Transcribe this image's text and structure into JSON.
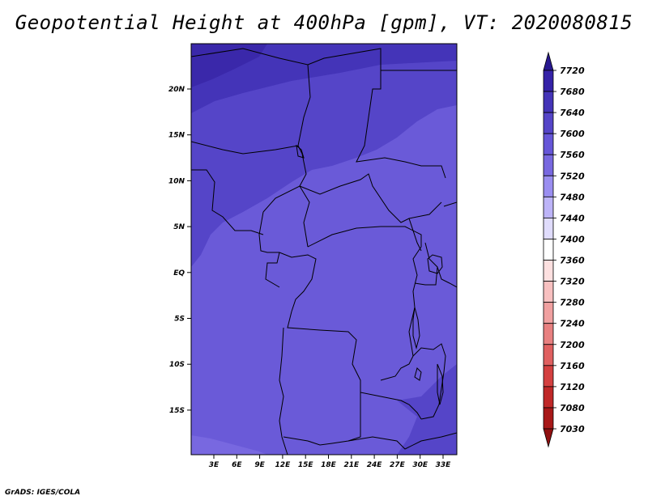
{
  "title": "Geopotential Height at 400hPa [gpm], VT: 2020080815",
  "footer": "GrADS: IGES/COLA",
  "map": {
    "lat_ticks": [
      "20N",
      "15N",
      "10N",
      "5N",
      "EQ",
      "5S",
      "10S",
      "15S"
    ],
    "lon_ticks": [
      "3E",
      "6E",
      "9E",
      "12E",
      "15E",
      "18E",
      "21E",
      "24E",
      "27E",
      "30E",
      "33E"
    ]
  },
  "colorbar": {
    "levels": [
      "7720",
      "7680",
      "7640",
      "7600",
      "7560",
      "7520",
      "7480",
      "7440",
      "7400",
      "7360",
      "7320",
      "7280",
      "7240",
      "7200",
      "7160",
      "7120",
      "7080",
      "7030"
    ],
    "colors": [
      "#281890",
      "#3522a8",
      "#4434b8",
      "#5545c8",
      "#6656d8",
      "#7868e0",
      "#9a8ef0",
      "#bdb4f8",
      "#e0dcfc",
      "#ffffff",
      "#fde0e0",
      "#f8c0c0",
      "#f0a0a0",
      "#e88080",
      "#e06060",
      "#d44040",
      "#c02828",
      "#a81818",
      "#901010"
    ]
  }
}
